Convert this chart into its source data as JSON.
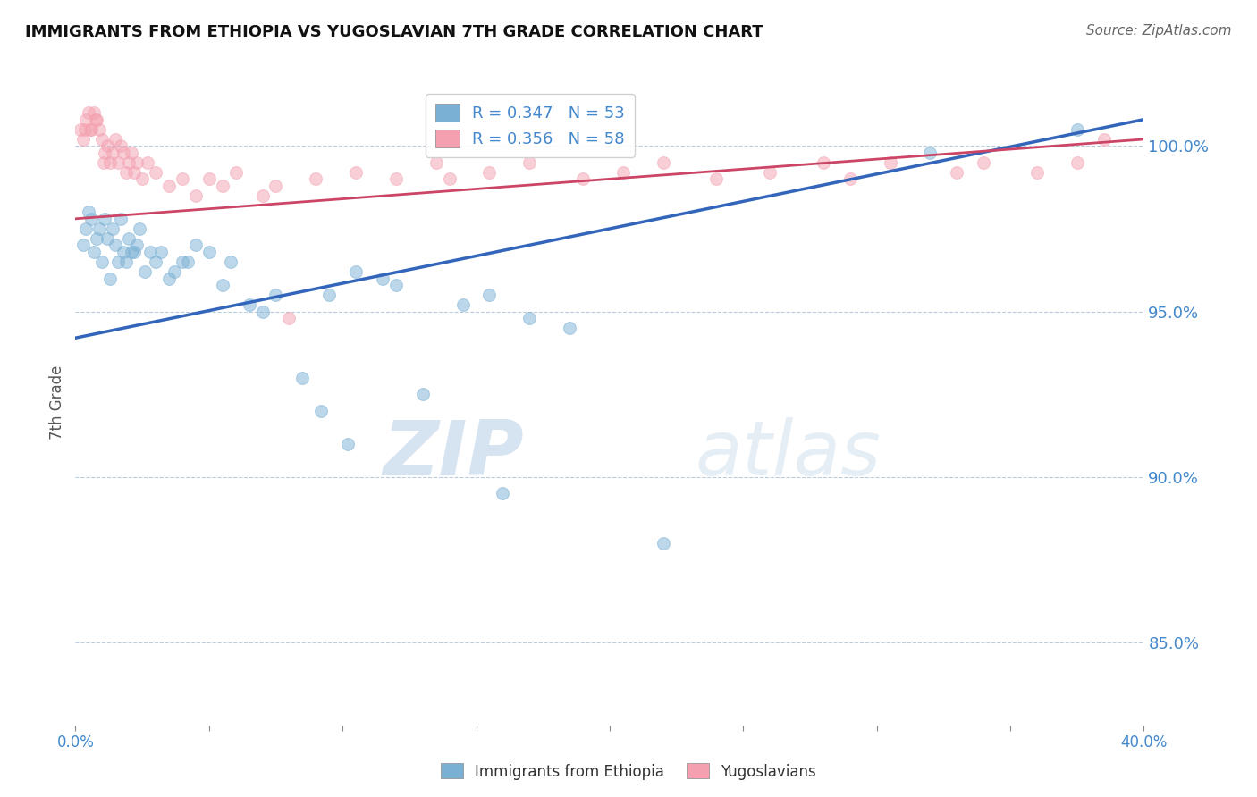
{
  "title": "IMMIGRANTS FROM ETHIOPIA VS YUGOSLAVIAN 7TH GRADE CORRELATION CHART",
  "source": "Source: ZipAtlas.com",
  "ylabel": "7th Grade",
  "legend_blue": "R = 0.347   N = 53",
  "legend_pink": "R = 0.356   N = 58",
  "legend_label_blue": "Immigrants from Ethiopia",
  "legend_label_pink": "Yugoslavians",
  "blue_color": "#7ab0d4",
  "pink_color": "#f4a0b0",
  "line_blue": "#3366bb",
  "line_pink": "#cc4466",
  "watermark_zip": "ZIP",
  "watermark_atlas": "atlas",
  "xlim": [
    0.0,
    40.0
  ],
  "ylim": [
    82.5,
    102.0
  ],
  "yticks": [
    85.0,
    90.0,
    95.0,
    100.0
  ],
  "xticks": [
    0.0,
    5.0,
    10.0,
    15.0,
    20.0,
    25.0,
    30.0,
    35.0,
    40.0
  ],
  "blue_x": [
    0.3,
    0.4,
    0.5,
    0.6,
    0.7,
    0.8,
    0.9,
    1.0,
    1.1,
    1.2,
    1.3,
    1.4,
    1.5,
    1.6,
    1.7,
    1.8,
    2.0,
    2.2,
    2.4,
    2.6,
    2.8,
    3.0,
    3.5,
    4.0,
    4.5,
    5.0,
    5.5,
    6.5,
    7.5,
    9.5,
    10.5,
    11.5,
    12.0,
    14.5,
    15.5,
    17.0,
    18.5,
    2.1,
    2.3,
    1.9,
    3.2,
    3.7,
    4.2,
    5.8,
    7.0,
    8.5,
    9.2,
    10.2,
    13.0,
    16.0,
    22.0,
    32.0,
    37.5
  ],
  "blue_y": [
    97.0,
    97.5,
    98.0,
    97.8,
    96.8,
    97.2,
    97.5,
    96.5,
    97.8,
    97.2,
    96.0,
    97.5,
    97.0,
    96.5,
    97.8,
    96.8,
    97.2,
    96.8,
    97.5,
    96.2,
    96.8,
    96.5,
    96.0,
    96.5,
    97.0,
    96.8,
    95.8,
    95.2,
    95.5,
    95.5,
    96.2,
    96.0,
    95.8,
    95.2,
    95.5,
    94.8,
    94.5,
    96.8,
    97.0,
    96.5,
    96.8,
    96.2,
    96.5,
    96.5,
    95.0,
    93.0,
    92.0,
    91.0,
    92.5,
    89.5,
    88.0,
    99.8,
    100.5
  ],
  "pink_x": [
    0.2,
    0.3,
    0.4,
    0.5,
    0.6,
    0.7,
    0.8,
    0.9,
    1.0,
    1.1,
    1.2,
    1.3,
    1.4,
    1.5,
    1.6,
    1.7,
    1.8,
    1.9,
    2.0,
    2.1,
    2.2,
    2.3,
    2.5,
    2.7,
    3.0,
    3.5,
    4.0,
    4.5,
    5.0,
    5.5,
    6.0,
    7.0,
    7.5,
    8.0,
    9.0,
    10.5,
    12.0,
    13.5,
    14.0,
    15.5,
    17.0,
    19.0,
    20.5,
    22.0,
    24.0,
    26.0,
    28.0,
    29.0,
    30.5,
    33.0,
    34.0,
    36.0,
    37.5,
    38.5,
    0.35,
    0.55,
    0.75,
    1.05
  ],
  "pink_y": [
    100.5,
    100.2,
    100.8,
    101.0,
    100.5,
    101.0,
    100.8,
    100.5,
    100.2,
    99.8,
    100.0,
    99.5,
    99.8,
    100.2,
    99.5,
    100.0,
    99.8,
    99.2,
    99.5,
    99.8,
    99.2,
    99.5,
    99.0,
    99.5,
    99.2,
    98.8,
    99.0,
    98.5,
    99.0,
    98.8,
    99.2,
    98.5,
    98.8,
    94.8,
    99.0,
    99.2,
    99.0,
    99.5,
    99.0,
    99.2,
    99.5,
    99.0,
    99.2,
    99.5,
    99.0,
    99.2,
    99.5,
    99.0,
    99.5,
    99.2,
    99.5,
    99.2,
    99.5,
    100.2,
    100.5,
    100.5,
    100.8,
    99.5
  ],
  "blue_line_x": [
    0.0,
    40.0
  ],
  "blue_line_y": [
    94.2,
    100.8
  ],
  "pink_line_x": [
    0.0,
    40.0
  ],
  "pink_line_y": [
    97.8,
    100.2
  ]
}
